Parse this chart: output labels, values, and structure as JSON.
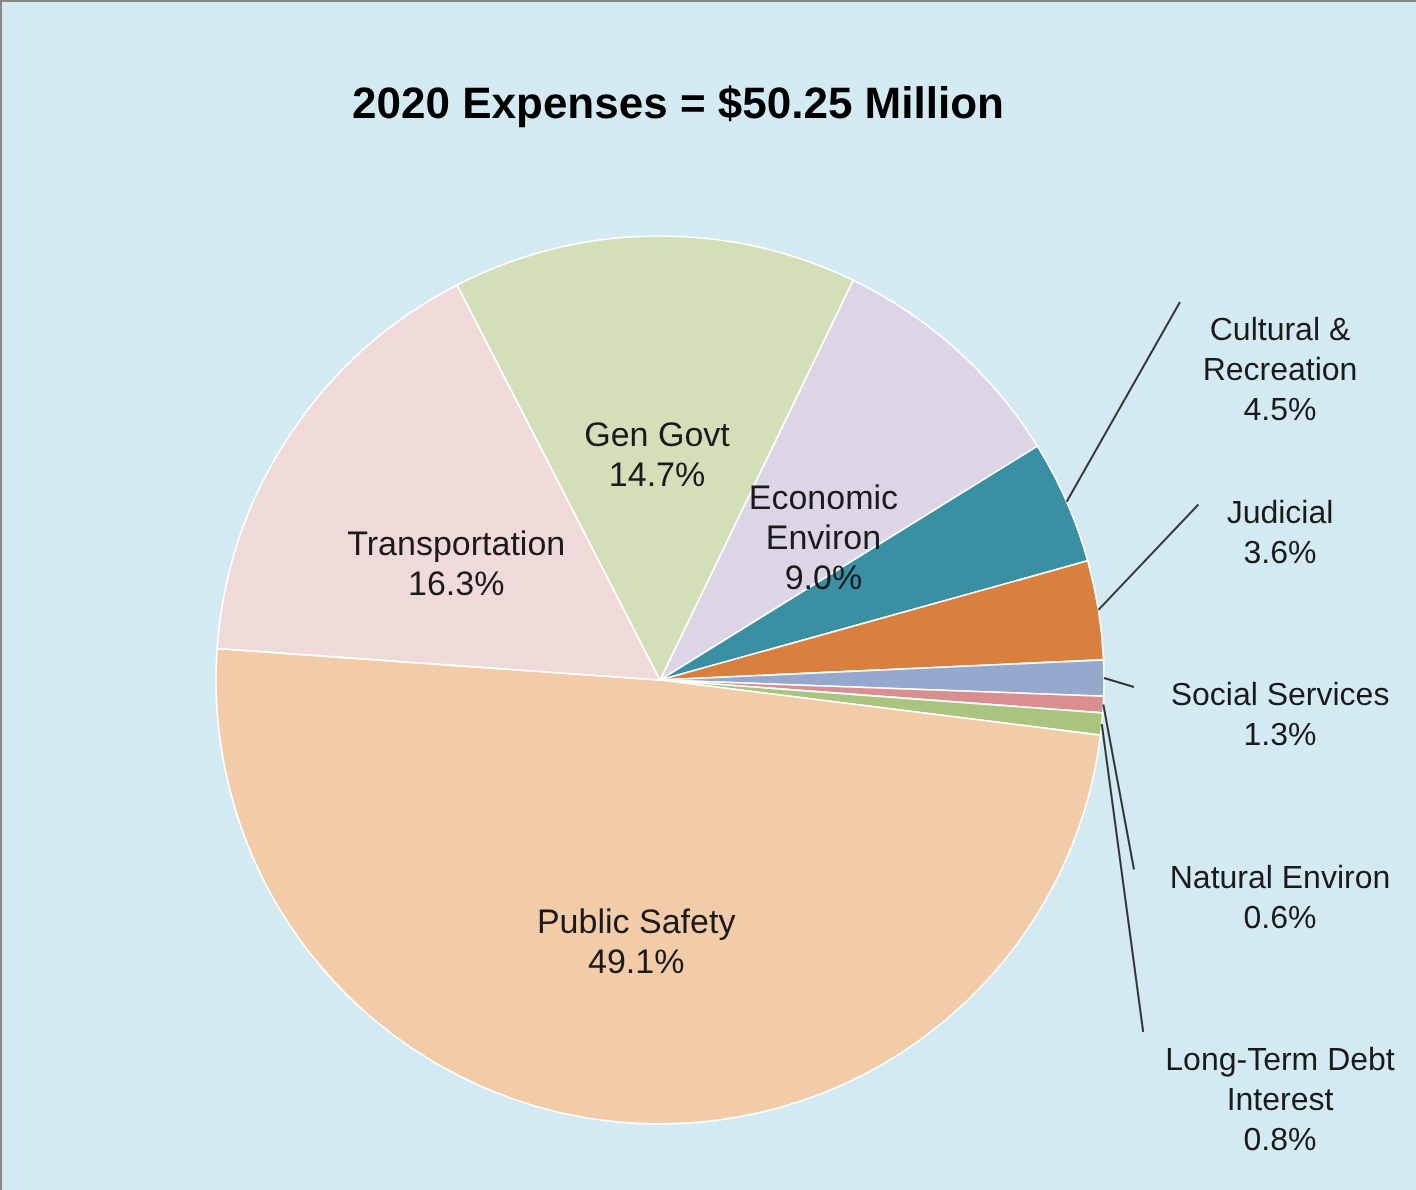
{
  "chart_data": {
    "type": "pie",
    "title": "2020 Expenses = $50.25 Million",
    "categories": [
      "Economic Environ",
      "Cultural & Recreation",
      "Judicial",
      "Social Services",
      "Natural Environ",
      "Long-Term Debt Interest",
      "Public Safety",
      "Transportation",
      "Gen Govt"
    ],
    "values": [
      9.0,
      4.5,
      3.6,
      1.3,
      0.6,
      0.8,
      49.1,
      16.3,
      14.7
    ],
    "value_labels": [
      "9.0%",
      "4.5%",
      "3.6%",
      "1.3%",
      "0.6%",
      "0.8%",
      "49.1%",
      "16.3%",
      "14.7%"
    ],
    "colors": [
      "#dcd5e6",
      "#3a8fa3",
      "#d9803f",
      "#95a9cf",
      "#d98f8f",
      "#a9c47f",
      "#f2cba8",
      "#efd9d9",
      "#d2dfb8"
    ]
  }
}
